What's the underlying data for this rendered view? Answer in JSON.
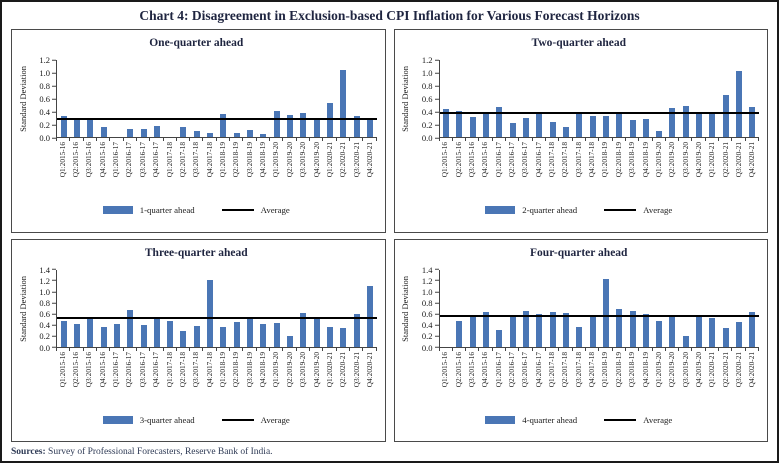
{
  "figure": {
    "title": "Chart 4: Disagreement in Exclusion-based CPI Inflation for Various Forecast Horizons",
    "sources_label": "Sources:",
    "sources_text": " Survey of Professional Forecasters, Reserve Bank of India.",
    "colors": {
      "bar": "#4a76b5",
      "average_line": "#000000",
      "heading": "#1f2540"
    }
  },
  "chart_data": [
    {
      "type": "bar",
      "title": "One-quarter ahead",
      "ylabel": "Standard Deviation",
      "legend": [
        "1-quarter ahead",
        "Average"
      ],
      "ylim": [
        0,
        1.2
      ],
      "ytick_step": 0.2,
      "average": 0.28,
      "grid": false,
      "legend_position": "bottom",
      "categories": [
        "Q1:2015-16",
        "Q2:2015-16",
        "Q3:2015-16",
        "Q4:2015-16",
        "Q1:2016-17",
        "Q2:2016-17",
        "Q3:2016-17",
        "Q4:2016-17",
        "Q1:2017-18",
        "Q2:2017-18",
        "Q3:2017-18",
        "Q4:2017-18",
        "Q1:2018-19",
        "Q2:2018-19",
        "Q3:2018-19",
        "Q4:2018-19",
        "Q1:2019-20",
        "Q2:2019-20",
        "Q3:2019-20",
        "Q4:2019-20",
        "Q1:2020-21",
        "Q2:2020-21",
        "Q3:2020-21",
        "Q4:2020-21"
      ],
      "values": [
        0.33,
        0.27,
        0.26,
        0.16,
        0.0,
        0.12,
        0.13,
        0.17,
        0.0,
        0.15,
        0.1,
        0.06,
        0.36,
        0.07,
        0.11,
        0.04,
        0.4,
        0.35,
        0.38,
        0.26,
        0.53,
        1.05,
        0.33,
        0.26
      ]
    },
    {
      "type": "bar",
      "title": "Two-quarter ahead",
      "ylabel": "Standard Deviation",
      "legend": [
        "2-quarter ahead",
        "Average"
      ],
      "ylim": [
        0,
        1.2
      ],
      "ytick_step": 0.2,
      "average": 0.38,
      "grid": false,
      "legend_position": "bottom",
      "categories": [
        "Q1:2015-16",
        "Q2:2015-16",
        "Q3:2015-16",
        "Q4:2015-16",
        "Q1:2016-17",
        "Q2:2016-17",
        "Q3:2016-17",
        "Q4:2016-17",
        "Q1:2017-18",
        "Q2:2017-18",
        "Q3:2017-18",
        "Q4:2017-18",
        "Q1:2018-19",
        "Q2:2018-19",
        "Q3:2018-19",
        "Q4:2018-19",
        "Q1:2019-20",
        "Q2:2019-20",
        "Q3:2019-20",
        "Q4:2019-20",
        "Q1:2020-21",
        "Q2:2020-21",
        "Q3:2020-21",
        "Q4:2020-21"
      ],
      "values": [
        0.43,
        0.41,
        0.31,
        0.38,
        0.46,
        0.22,
        0.29,
        0.38,
        0.23,
        0.16,
        0.38,
        0.32,
        0.33,
        0.38,
        0.26,
        0.28,
        0.09,
        0.45,
        0.49,
        0.36,
        0.37,
        0.65,
        1.03,
        0.46
      ]
    },
    {
      "type": "bar",
      "title": "Three-quarter ahead",
      "ylabel": "Standard Deviation",
      "legend": [
        "3-quarter ahead",
        "Average"
      ],
      "ylim": [
        0,
        1.4
      ],
      "ytick_step": 0.2,
      "average": 0.51,
      "grid": false,
      "legend_position": "bottom",
      "categories": [
        "Q1:2015-16",
        "Q2:2015-16",
        "Q3:2015-16",
        "Q4:2015-16",
        "Q1:2016-17",
        "Q2:2016-17",
        "Q3:2016-17",
        "Q4:2016-17",
        "Q1:2017-18",
        "Q2:2017-18",
        "Q3:2017-18",
        "Q4:2017-18",
        "Q1:2018-19",
        "Q2:2018-19",
        "Q3:2018-19",
        "Q4:2018-19",
        "Q1:2019-20",
        "Q2:2019-20",
        "Q3:2019-20",
        "Q4:2019-20",
        "Q1:2020-21",
        "Q2:2020-21",
        "Q3:2020-21",
        "Q4:2020-21"
      ],
      "values": [
        0.47,
        0.41,
        0.53,
        0.35,
        0.41,
        0.67,
        0.39,
        0.5,
        0.47,
        0.29,
        0.37,
        1.21,
        0.35,
        0.45,
        0.5,
        0.41,
        0.43,
        0.2,
        0.61,
        0.5,
        0.35,
        0.34,
        0.6,
        1.1
      ]
    },
    {
      "type": "bar",
      "title": "Four-quarter ahead",
      "ylabel": "Standard Deviation",
      "legend": [
        "4-quarter ahead",
        "Average"
      ],
      "ylim": [
        0,
        1.4
      ],
      "ytick_step": 0.2,
      "average": 0.56,
      "grid": false,
      "legend_position": "bottom",
      "categories": [
        "Q1:2015-16",
        "Q2:2015-16",
        "Q3:2015-16",
        "Q4:2015-16",
        "Q1:2016-17",
        "Q2:2016-17",
        "Q3:2016-17",
        "Q4:2016-17",
        "Q1:2017-18",
        "Q2:2017-18",
        "Q3:2017-18",
        "Q4:2017-18",
        "Q1:2018-19",
        "Q2:2018-19",
        "Q3:2018-19",
        "Q4:2018-19",
        "Q1:2019-20",
        "Q2:2019-20",
        "Q3:2019-20",
        "Q4:2019-20",
        "Q1:2020-21",
        "Q2:2020-21",
        "Q3:2020-21",
        "Q4:2020-21"
      ],
      "values": [
        0.0,
        0.47,
        0.56,
        0.62,
        0.3,
        0.56,
        0.65,
        0.6,
        0.62,
        0.61,
        0.35,
        0.56,
        1.23,
        0.68,
        0.65,
        0.59,
        0.46,
        0.56,
        0.19,
        0.56,
        0.51,
        0.33,
        0.44,
        0.63
      ]
    }
  ]
}
